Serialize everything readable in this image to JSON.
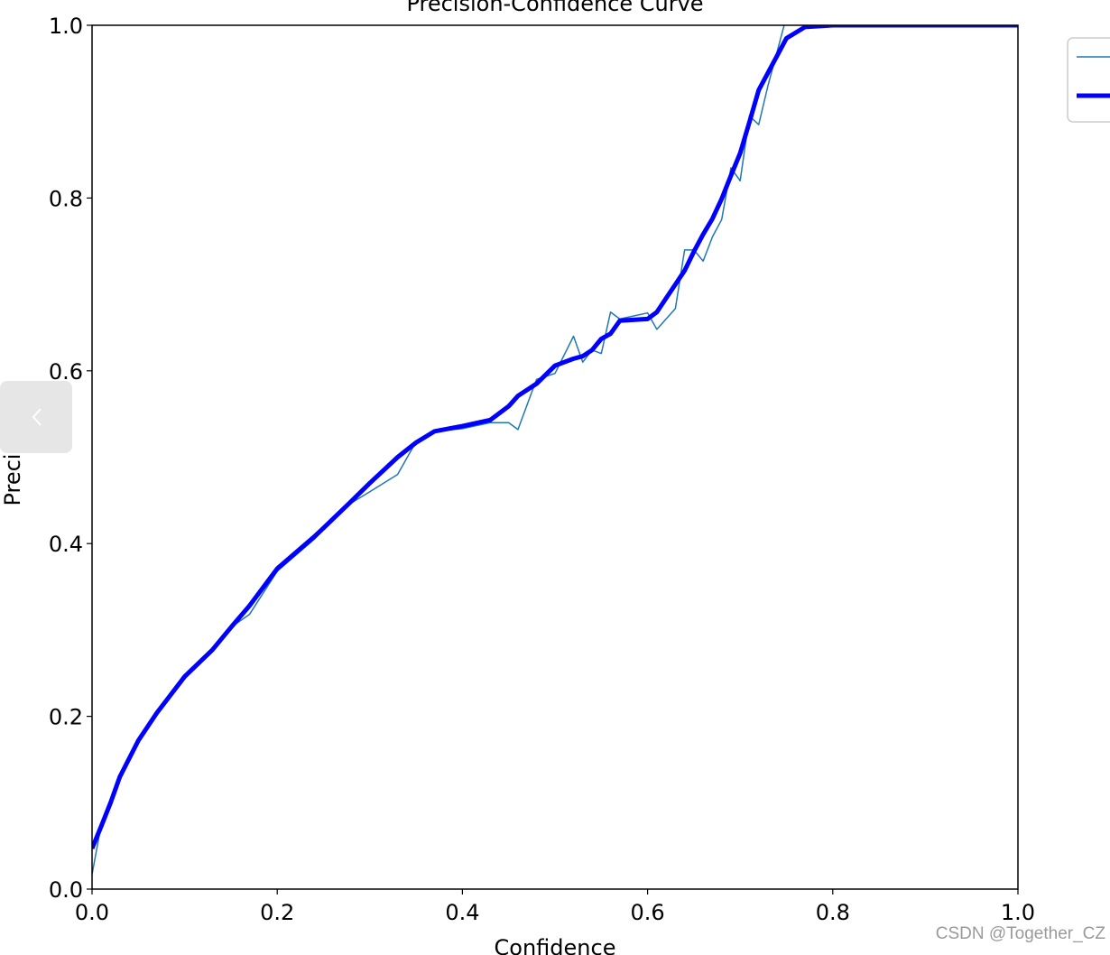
{
  "chart_data": {
    "type": "line",
    "title": "Precision-Confidence Curve",
    "x_label": "Confidence",
    "y_label": "Precision",
    "x": [
      0.0,
      0.01,
      0.02,
      0.03,
      0.05,
      0.07,
      0.1,
      0.13,
      0.15,
      0.17,
      0.2,
      0.24,
      0.25,
      0.28,
      0.3,
      0.33,
      0.35,
      0.37,
      0.4,
      0.43,
      0.45,
      0.46,
      0.48,
      0.5,
      0.52,
      0.53,
      0.54,
      0.55,
      0.56,
      0.57,
      0.6,
      0.61,
      0.62,
      0.63,
      0.64,
      0.65,
      0.66,
      0.67,
      0.68,
      0.69,
      0.7,
      0.71,
      0.72,
      0.73,
      0.75,
      0.77,
      0.8,
      1.0
    ],
    "series": [
      {
        "color": "#1f77b4",
        "width": 1.5,
        "values": [
          0.017,
          0.075,
          0.1,
          0.128,
          0.172,
          0.204,
          0.246,
          0.277,
          0.303,
          0.318,
          0.368,
          0.405,
          0.416,
          0.447,
          0.46,
          0.48,
          0.518,
          0.53,
          0.533,
          0.54,
          0.54,
          0.532,
          0.59,
          0.597,
          0.64,
          0.61,
          0.624,
          0.62,
          0.668,
          0.66,
          0.667,
          0.648,
          0.66,
          0.672,
          0.74,
          0.74,
          0.727,
          0.755,
          0.775,
          0.835,
          0.82,
          0.895,
          0.885,
          0.93,
          1.01,
          1.0,
          1.0,
          1.0
        ]
      },
      {
        "color": "#0000ff",
        "width": 5,
        "values": [
          0.047,
          0.073,
          0.1,
          0.13,
          0.172,
          0.204,
          0.246,
          0.277,
          0.303,
          0.328,
          0.371,
          0.408,
          0.418,
          0.449,
          0.47,
          0.5,
          0.517,
          0.53,
          0.536,
          0.543,
          0.559,
          0.571,
          0.585,
          0.606,
          0.614,
          0.617,
          0.624,
          0.637,
          0.643,
          0.658,
          0.66,
          0.668,
          0.684,
          0.7,
          0.716,
          0.738,
          0.758,
          0.776,
          0.799,
          0.826,
          0.852,
          0.888,
          0.925,
          0.945,
          0.985,
          0.998,
          1.0,
          1.0
        ]
      }
    ],
    "xlim": [
      0,
      1
    ],
    "ylim": [
      0,
      1
    ],
    "xticks": [
      {
        "value": 0,
        "label": "0.0"
      },
      0.2,
      0.4,
      0.6,
      0.8,
      {
        "value": 1,
        "label": "1.0"
      }
    ],
    "yticks": [
      {
        "value": 0,
        "label": "0.0"
      },
      0.2,
      0.4,
      0.6,
      0.8,
      {
        "value": 1,
        "label": "1.0"
      }
    ],
    "legend": "upper-right-outside"
  },
  "watermark": "CSDN @Together_CZ"
}
